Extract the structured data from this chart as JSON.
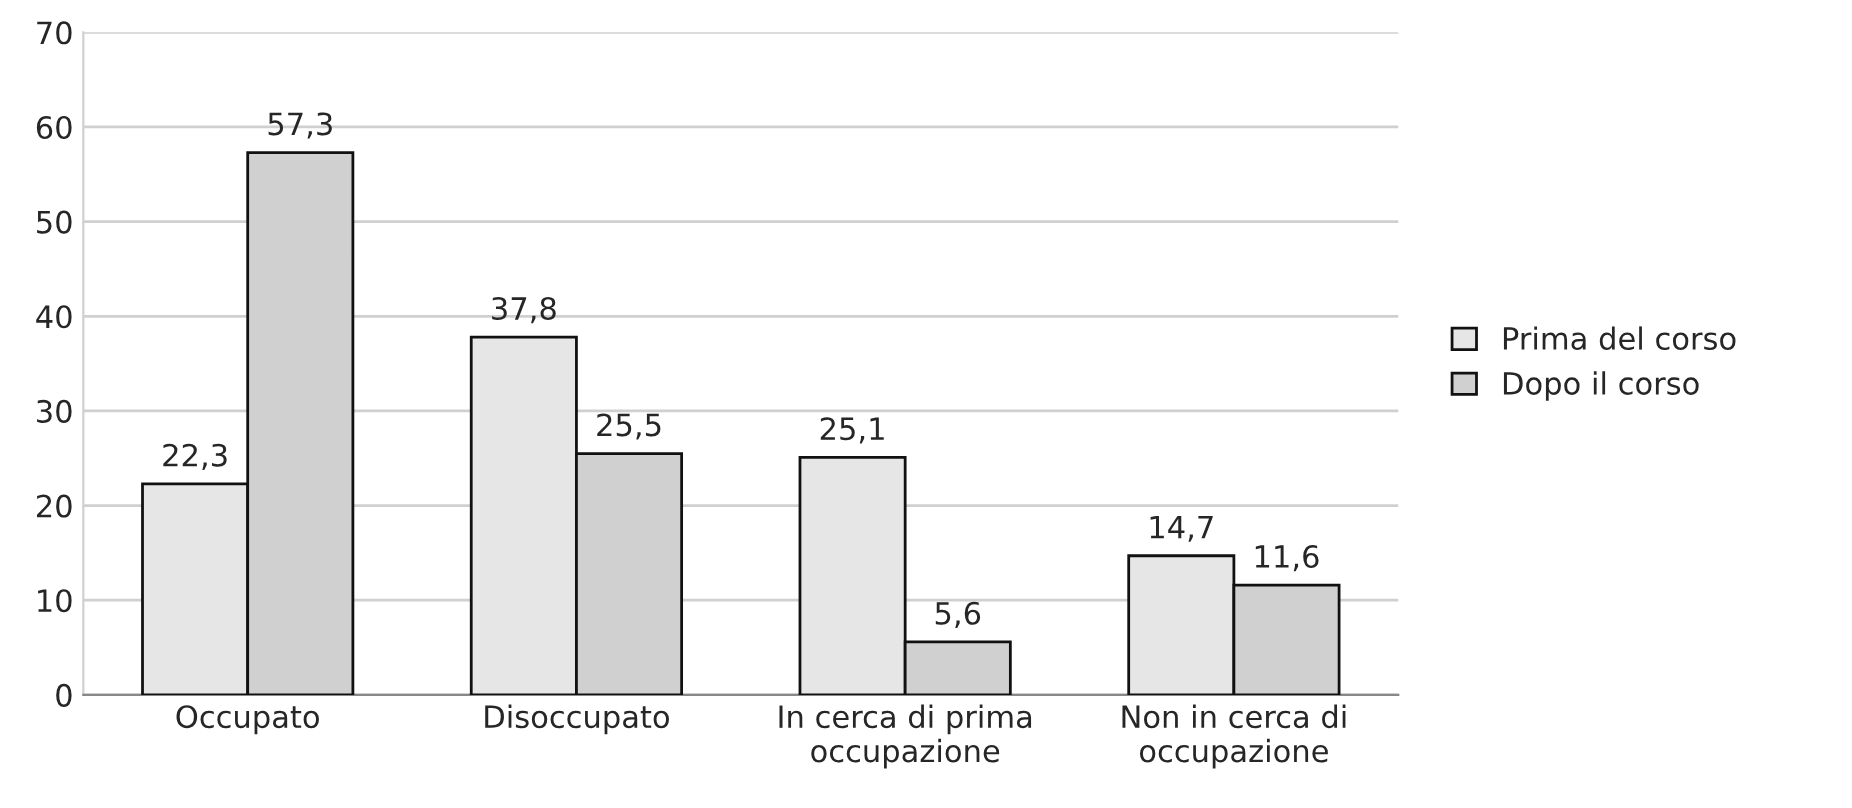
{
  "chart_data": {
    "type": "bar",
    "categories": [
      "Occupato",
      "Disoccupato",
      "In cerca di prima\noccupazione",
      "Non in cerca di\noccupazione"
    ],
    "series": [
      {
        "name": "Prima del corso",
        "color": "#e6e6e6",
        "values": [
          22.3,
          37.8,
          25.1,
          14.7
        ],
        "value_labels": [
          "22,3",
          "37,8",
          "25,1",
          "14,7"
        ]
      },
      {
        "name": "Dopo il corso",
        "color": "#d0d0d0",
        "values": [
          57.3,
          25.5,
          5.6,
          11.6
        ],
        "value_labels": [
          "57,3",
          "25,5",
          "5,6",
          "11,6"
        ]
      }
    ],
    "ylim": [
      0,
      70
    ],
    "yticks": [
      0,
      10,
      20,
      30,
      40,
      50,
      60,
      70
    ],
    "grid": "y",
    "legend": "right"
  }
}
